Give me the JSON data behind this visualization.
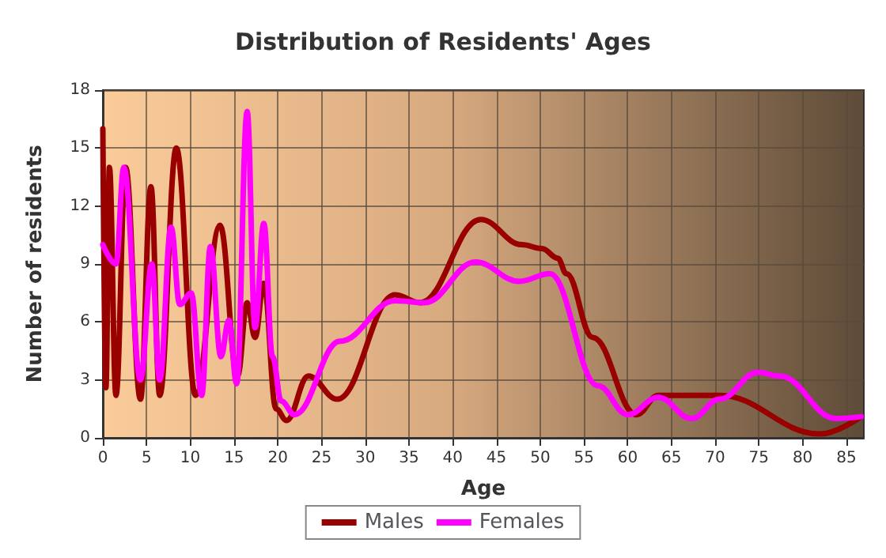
{
  "chart_data": {
    "type": "line",
    "title": "Distribution of Residents' Ages",
    "xlabel": "Age",
    "ylabel": "Number of residents",
    "xlim": [
      0,
      87
    ],
    "xticks": [
      0,
      5,
      10,
      15,
      20,
      25,
      30,
      35,
      40,
      45,
      50,
      55,
      60,
      65,
      70,
      75,
      80,
      85
    ],
    "ylim": [
      0,
      18
    ],
    "yticks": [
      0,
      3,
      6,
      9,
      12,
      15,
      18
    ],
    "grid": true,
    "legend": "bottom",
    "marker": "none",
    "line_style": "solid",
    "series": [
      {
        "name": "Males",
        "color": "#990000",
        "x": [
          0,
          0.35,
          0.75,
          1.5,
          2.6,
          4.3,
          5.5,
          6.5,
          8.4,
          10.6,
          13.4,
          15.4,
          16.5,
          17.4,
          18.4,
          19.8,
          21,
          23.5,
          26.8,
          33.4,
          36.3,
          43.2,
          47.9,
          50.2,
          52,
          53,
          56,
          61,
          63.5,
          70.5,
          82,
          86.7
        ],
        "values": [
          16,
          2.6,
          14,
          2.2,
          14,
          2,
          13,
          2.2,
          15,
          2.2,
          11,
          3.2,
          7,
          5.2,
          8,
          1.5,
          0.9,
          3.2,
          2,
          7.4,
          7,
          11.3,
          10,
          9.8,
          9.3,
          8.5,
          5.2,
          1.2,
          2.2,
          2.2,
          0.2,
          1.1
        ]
      },
      {
        "name": "Females",
        "color": "#ff00ff",
        "x": [
          0,
          1.5,
          2.4,
          4.3,
          5.6,
          6.5,
          7.8,
          8.8,
          10.1,
          11.3,
          12.3,
          13.5,
          14.4,
          15.3,
          16.5,
          17.4,
          18.4,
          19.4,
          20.4,
          21.9,
          27.1,
          33.4,
          36.8,
          42.6,
          47.6,
          51.1,
          56.6,
          60,
          63.5,
          67.3,
          70.5,
          74.9,
          77.4,
          83.8,
          86.7
        ],
        "values": [
          10,
          9,
          14,
          3,
          9,
          3,
          10.9,
          6.9,
          7.5,
          2.2,
          9.9,
          4.2,
          6.1,
          2.8,
          16.9,
          5.7,
          11.1,
          4.2,
          1.9,
          1.2,
          5,
          7.1,
          7,
          9.1,
          8.1,
          8.5,
          2.7,
          1.2,
          2.1,
          1,
          2,
          3.4,
          3.2,
          1,
          1.1
        ]
      }
    ]
  }
}
